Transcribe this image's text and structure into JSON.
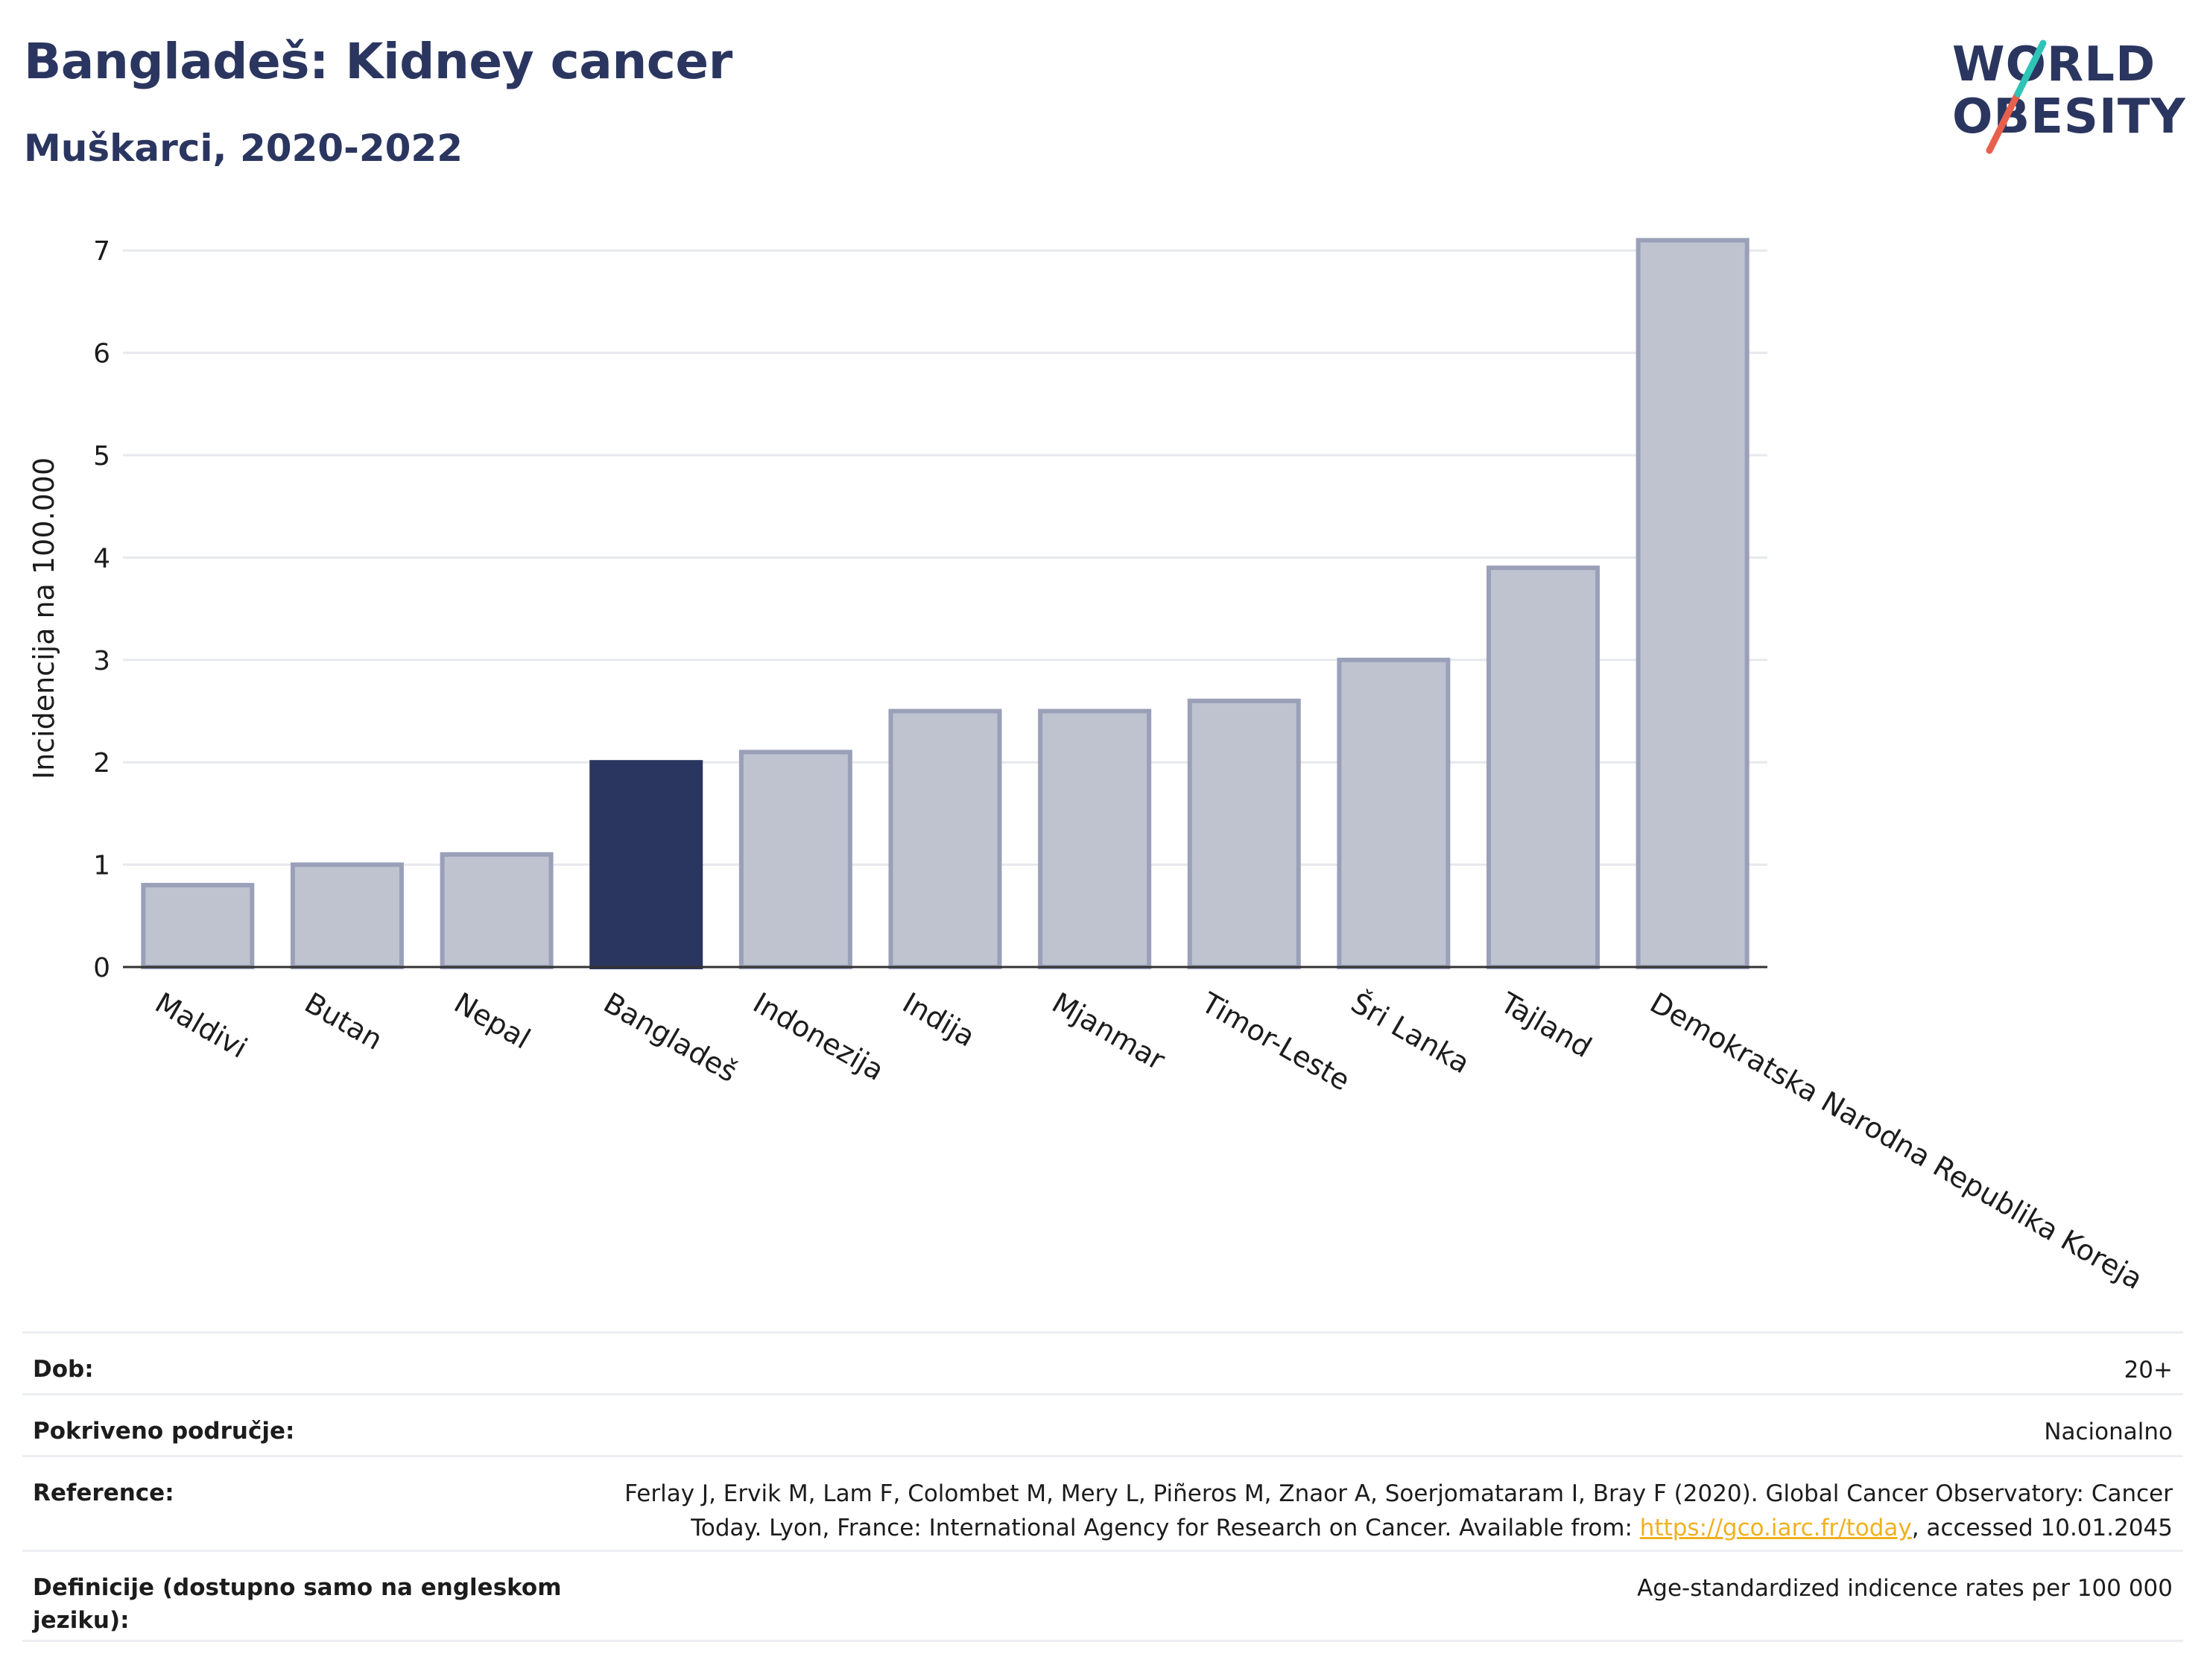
{
  "header": {
    "title": "Bangladeš: Kidney cancer",
    "subtitle": "Muškarci, 2020-2022"
  },
  "logo": {
    "line1": "WORLD",
    "line2": "OBESITY",
    "slash_colors": [
      "#2ec4b6",
      "#e8604c"
    ]
  },
  "colors": {
    "highlight": "#2b3660",
    "bar_fill": "#bfc3d0",
    "bar_stroke": "#9aa0b8",
    "grid": "#e6e8ee",
    "axis": "#333333"
  },
  "chart_data": {
    "type": "bar",
    "categories": [
      "Maldivi",
      "Butan",
      "Nepal",
      "Bangladeš",
      "Indonezija",
      "Indija",
      "Mjanmar",
      "Timor-Leste",
      "Šri Lanka",
      "Tajland",
      "Demokratska Narodna Republika Koreja"
    ],
    "values": [
      0.8,
      1.0,
      1.1,
      2.0,
      2.1,
      2.5,
      2.5,
      2.6,
      3.0,
      3.9,
      7.1
    ],
    "highlight": "Bangladeš",
    "ylabel": "Incidencija na 100.000",
    "yticks": [
      0,
      1,
      2,
      3,
      4,
      5,
      6,
      7
    ],
    "ylim": [
      0,
      7.4
    ],
    "grid": true
  },
  "info": {
    "age_label": "Dob:",
    "age_value": "20+",
    "coverage_label": "Pokriveno područje:",
    "coverage_value": "Nacionalno",
    "reference_label": "Reference:",
    "reference_text_1": "Ferlay J, Ervik M, Lam F, Colombet M, Mery L, Piñeros M, Znaor A, Soerjomataram I, Bray F (2020). Global Cancer Observatory: Cancer",
    "reference_text_2": "Today. Lyon, France: International Agency for Research on Cancer. Available from: ",
    "reference_link": "https://gco.iarc.fr/today",
    "reference_text_3": ", accessed 10.01.2045",
    "definitions_label": "Definicije (dostupno samo na engleskom jeziku):",
    "definitions_value": "Age-standardized indicence rates per 100 000"
  }
}
